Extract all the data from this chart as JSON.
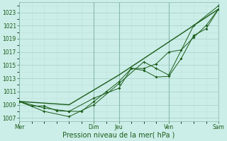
{
  "xlabel": "Pression niveau de la mer( hPa )",
  "bg_color": "#cceee8",
  "grid_major_color": "#aad4cc",
  "grid_minor_color": "#bde0da",
  "line_color": "#1a5c1a",
  "ylim": [
    1006.5,
    1024.5
  ],
  "yticks": [
    1007,
    1009,
    1011,
    1013,
    1015,
    1017,
    1019,
    1021,
    1023
  ],
  "xlim": [
    0,
    96
  ],
  "day_labels": [
    "Mer",
    "Dim",
    "Jeu",
    "Ven",
    "Sam"
  ],
  "day_positions": [
    0,
    36,
    48,
    72,
    96
  ],
  "line1_x": [
    0,
    6,
    12,
    18,
    24,
    30,
    36,
    42,
    48,
    54,
    60,
    66,
    72,
    78,
    84,
    90,
    96
  ],
  "line1_y": [
    1009.5,
    1008.8,
    1008.8,
    1008.1,
    1008.0,
    1008.0,
    1009.5,
    1011.0,
    1012.5,
    1014.5,
    1014.5,
    1015.2,
    1017.0,
    1017.3,
    1019.2,
    1021.0,
    1023.5
  ],
  "line2_x": [
    0,
    12,
    24,
    36,
    48,
    54,
    60,
    66,
    72,
    78,
    84,
    90,
    96
  ],
  "line2_y": [
    1009.5,
    1008.5,
    1008.0,
    1010.0,
    1011.5,
    1014.5,
    1014.2,
    1013.2,
    1013.3,
    1016.0,
    1019.5,
    1020.5,
    1023.5
  ],
  "line3_x": [
    0,
    12,
    24,
    36,
    48,
    60,
    66,
    72,
    84,
    96
  ],
  "line3_y": [
    1009.5,
    1008.0,
    1007.2,
    1009.0,
    1012.2,
    1015.5,
    1014.5,
    1013.5,
    1021.0,
    1024.0
  ],
  "line4_x": [
    0,
    24,
    48,
    72,
    96
  ],
  "line4_y": [
    1009.5,
    1009.0,
    1013.5,
    1018.5,
    1023.5
  ],
  "xlabel_fontsize": 7,
  "tick_fontsize": 5.5,
  "linewidth": 0.7,
  "markersize": 2.0
}
